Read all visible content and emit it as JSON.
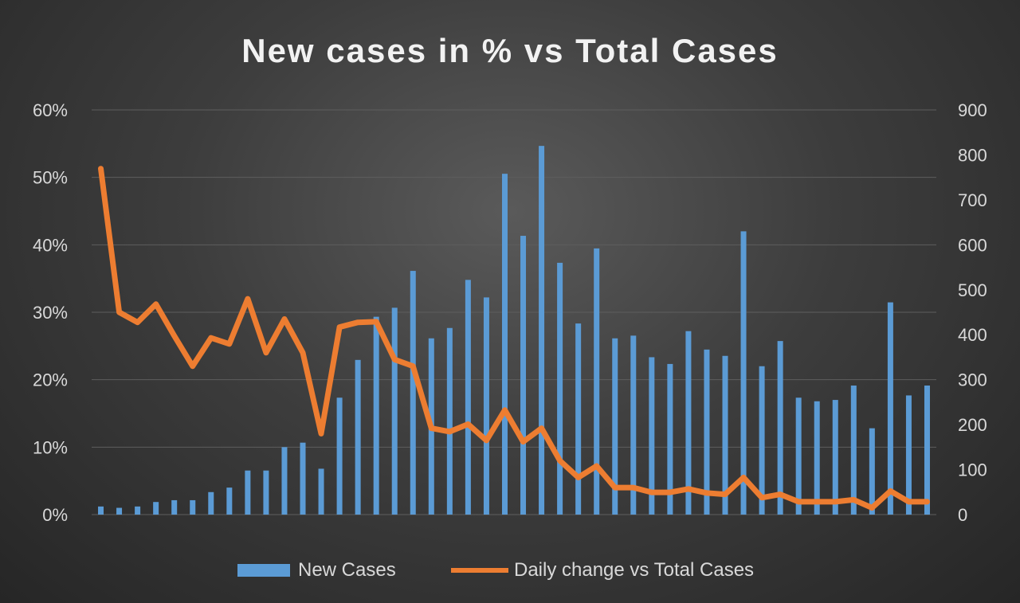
{
  "chart_data": {
    "type": "bar+line",
    "title": "New cases in % vs Total Cases",
    "xlabel": "",
    "ylabel": "",
    "left_axis": {
      "ticks": [
        "0%",
        "10%",
        "20%",
        "30%",
        "40%",
        "50%",
        "60%"
      ],
      "ylim": [
        0,
        60
      ]
    },
    "right_axis": {
      "ticks": [
        "0",
        "100",
        "200",
        "300",
        "400",
        "500",
        "600",
        "700",
        "800",
        "900"
      ],
      "ylim": [
        0,
        900
      ]
    },
    "grid": true,
    "legend_position": "bottom",
    "series": [
      {
        "name": "New Cases",
        "type": "bar",
        "axis": "right",
        "color": "#5b9bd5",
        "values": [
          18,
          15,
          18,
          28,
          32,
          32,
          50,
          60,
          98,
          98,
          150,
          160,
          102,
          260,
          344,
          440,
          460,
          542,
          392,
          415,
          522,
          483,
          758,
          620,
          820,
          560,
          425,
          592,
          392,
          398,
          350,
          335,
          408,
          367,
          353,
          630,
          330,
          386,
          260,
          252,
          255,
          287,
          192,
          472,
          265,
          287
        ]
      },
      {
        "name": "Daily change vs Total Cases",
        "type": "line",
        "axis": "left",
        "color": "#ed7d31",
        "values": [
          51.3,
          30.0,
          28.5,
          31.2,
          26.5,
          22.0,
          26.2,
          25.3,
          32.0,
          24.0,
          29.0,
          24.0,
          12.0,
          27.8,
          28.5,
          28.6,
          23.0,
          22.0,
          12.8,
          12.3,
          13.4,
          11.0,
          15.5,
          10.8,
          12.8,
          8.0,
          5.5,
          7.2,
          4.0,
          4.0,
          3.3,
          3.3,
          3.8,
          3.2,
          3.0,
          5.5,
          2.5,
          3.0,
          1.9,
          1.9,
          1.9,
          2.2,
          1.0,
          3.5,
          1.9,
          1.9
        ]
      }
    ]
  }
}
